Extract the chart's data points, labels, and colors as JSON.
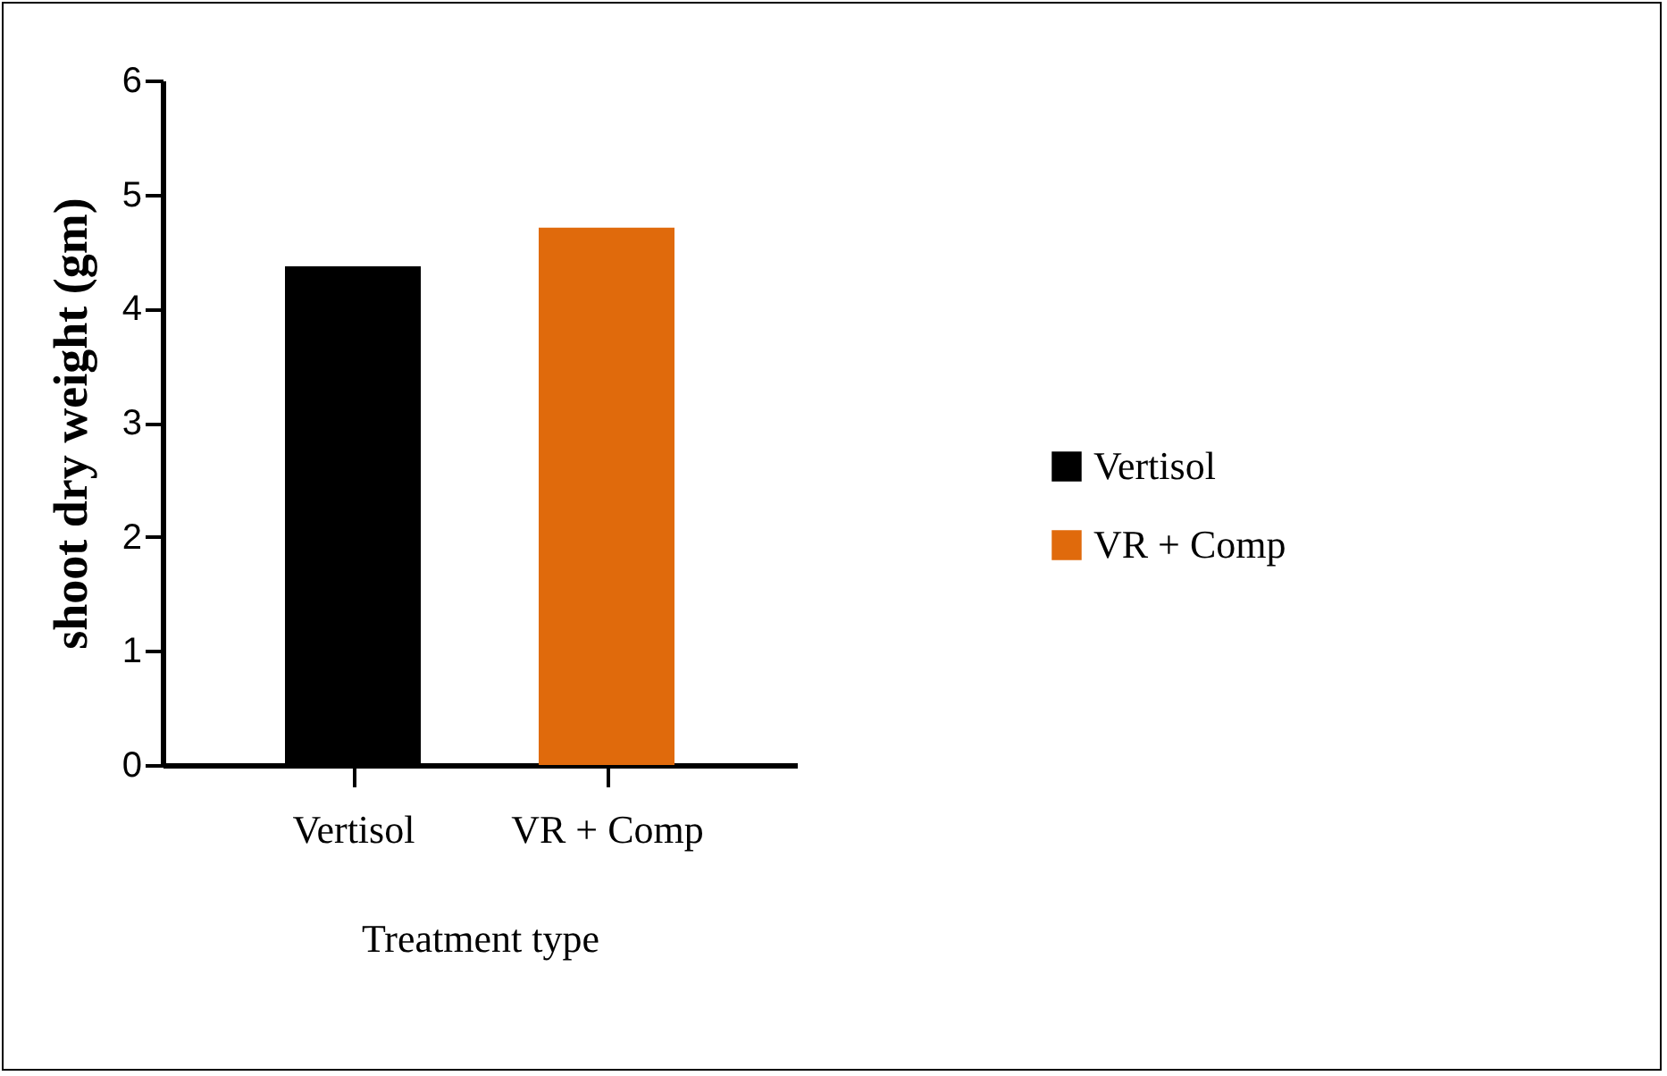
{
  "chart_data": {
    "type": "bar",
    "xlabel": "Treatment type",
    "ylabel": "shoot dry weight (gm)",
    "categories": [
      "Vertisol",
      "VR + Comp"
    ],
    "series": [
      {
        "name": "Vertisol",
        "color": "#000000",
        "values": [
          4.37,
          null
        ]
      },
      {
        "name": "VR + Comp",
        "color": "#e06a0c",
        "values": [
          null,
          4.71
        ]
      }
    ],
    "ylim": [
      0,
      6
    ],
    "yticks": [
      0,
      1,
      2,
      3,
      4,
      5,
      6
    ],
    "grid": false,
    "legend": "right"
  }
}
